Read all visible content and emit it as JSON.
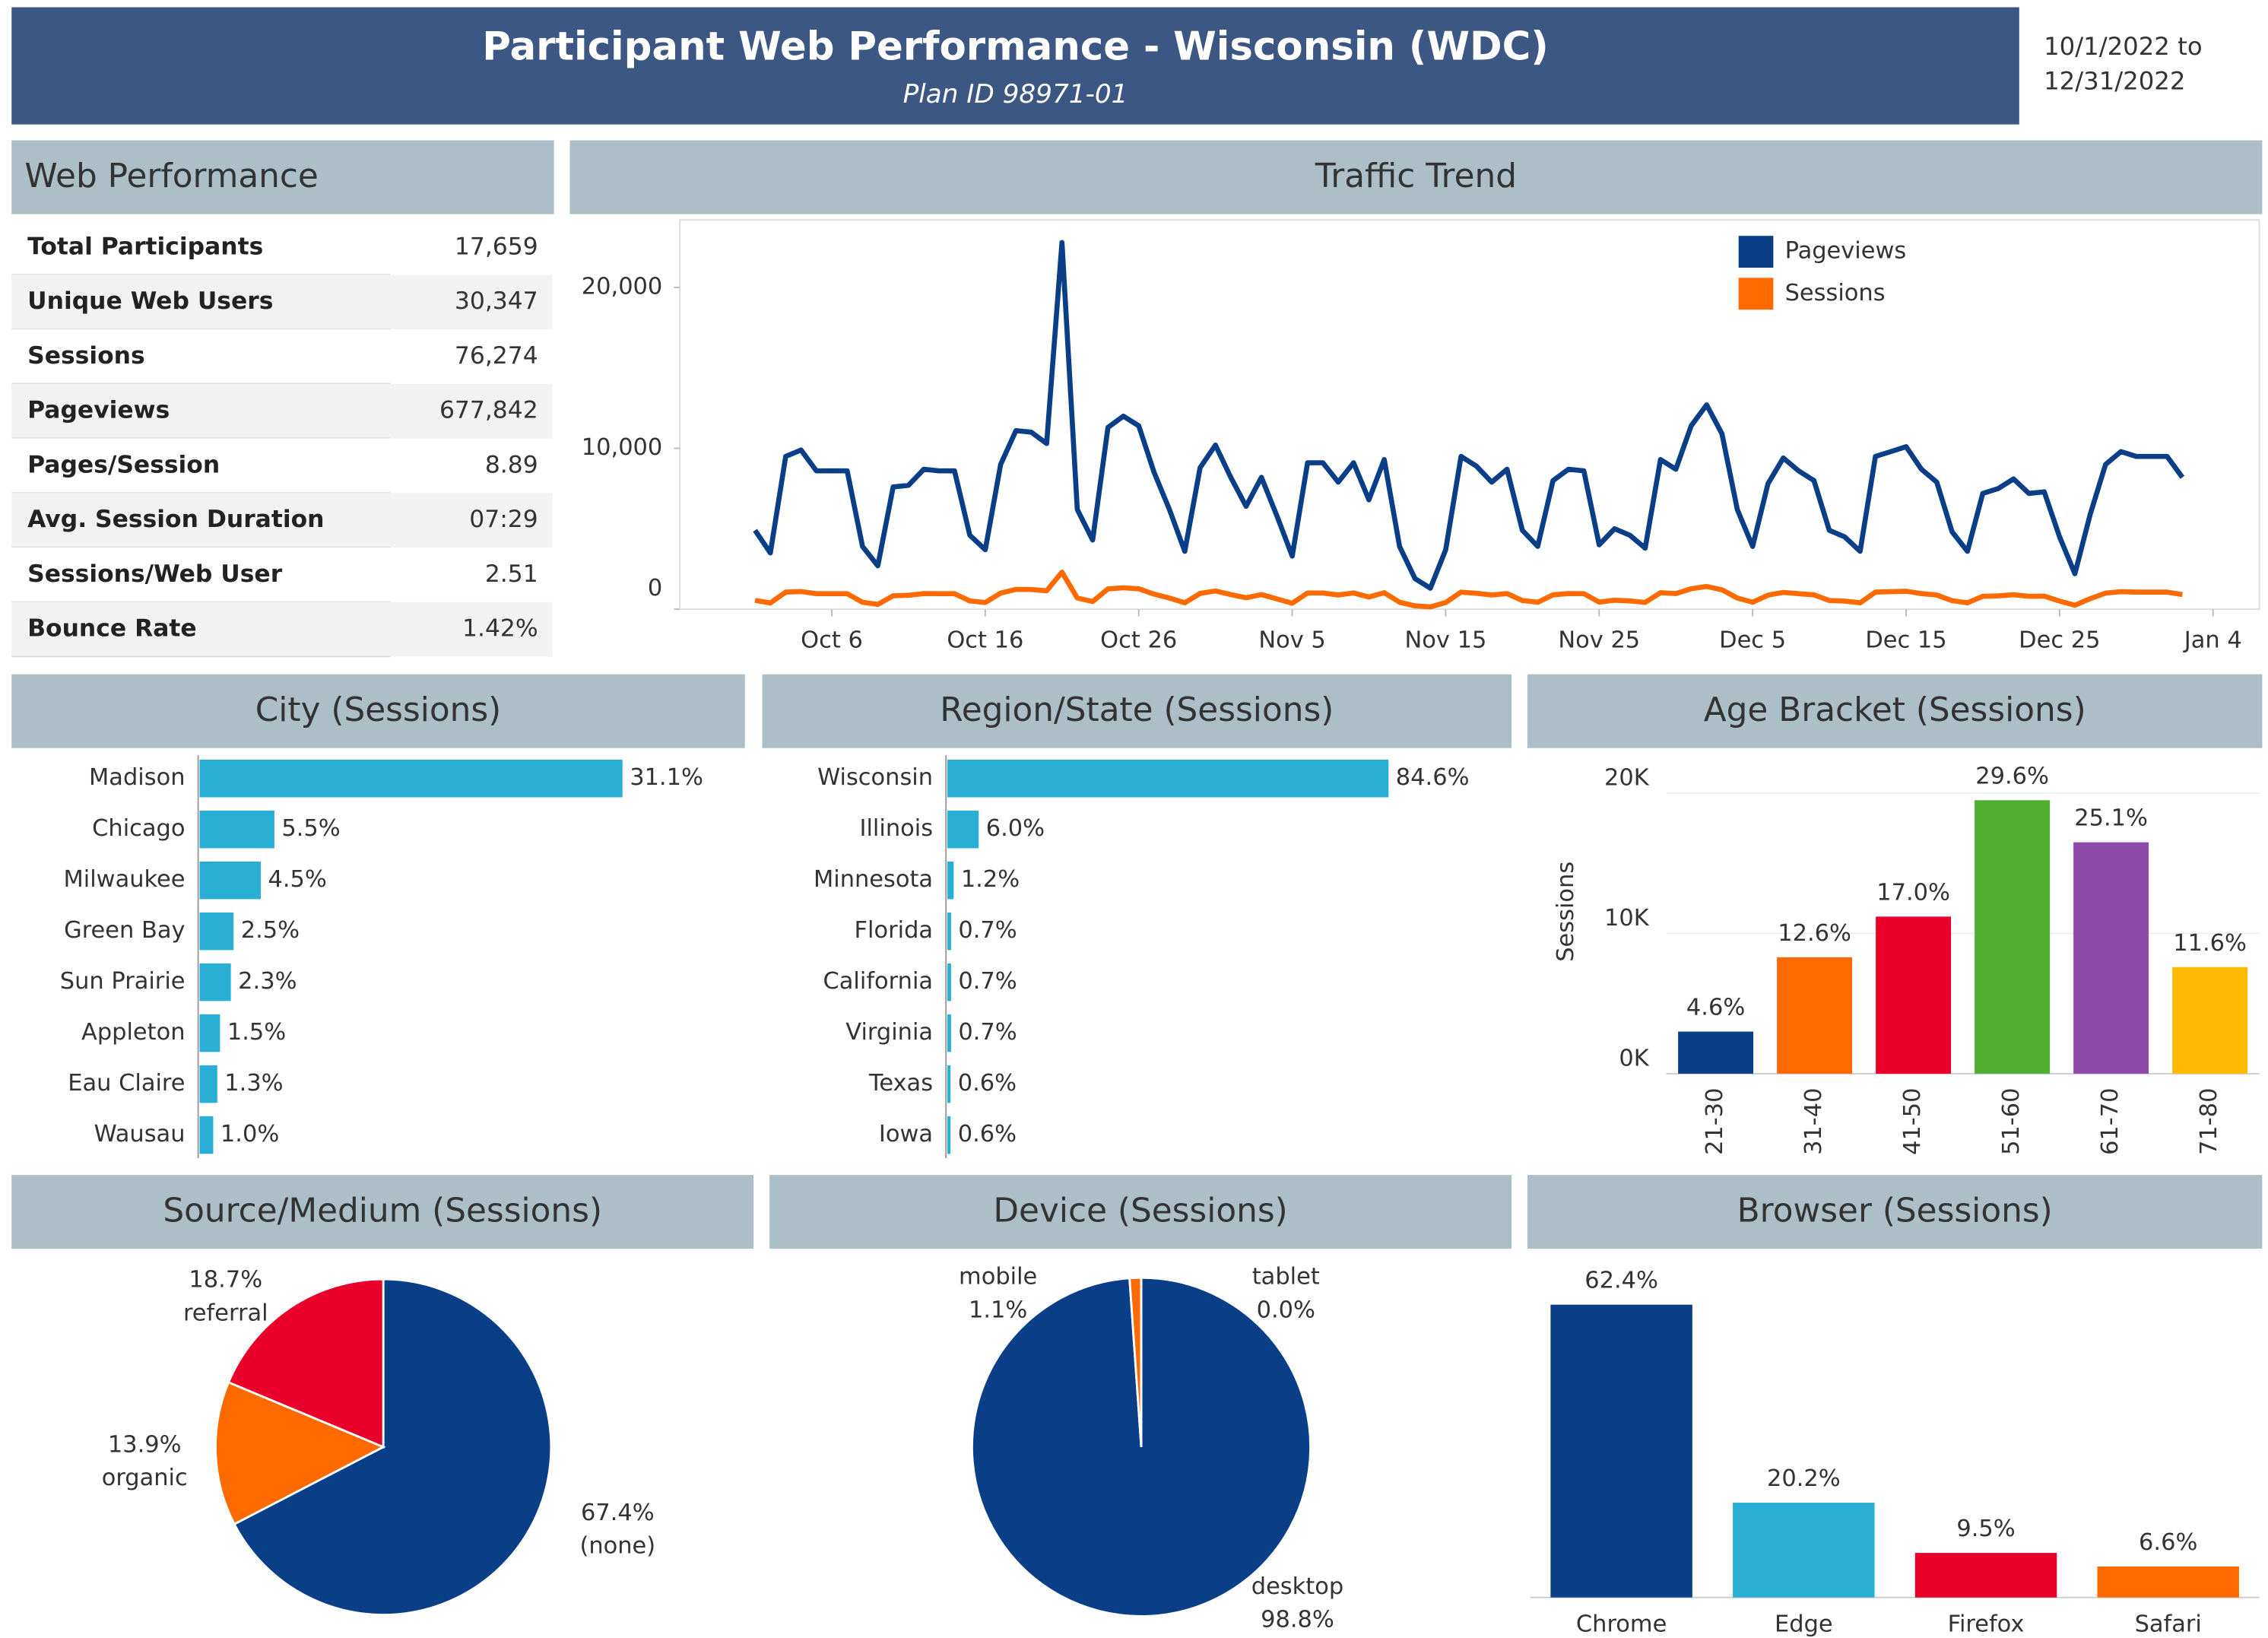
{
  "header": {
    "title": "Participant Web Performance - Wisconsin (WDC)",
    "subtitle": "Plan ID 98971-01",
    "date_range": [
      "10/1/2022 to",
      "12/31/2022"
    ]
  },
  "web_performance": {
    "title": "Web Performance",
    "rows": [
      [
        "Total Participants",
        "17,659"
      ],
      [
        "Unique Web Users",
        "30,347"
      ],
      [
        "Sessions",
        "76,274"
      ],
      [
        "Pageviews",
        "677,842"
      ],
      [
        "Pages/Session",
        "8.89"
      ],
      [
        "Avg. Session Duration",
        "07:29"
      ],
      [
        "Sessions/Web User",
        "2.51"
      ],
      [
        "Bounce Rate",
        "1.42%"
      ]
    ]
  },
  "chart_data": [
    {
      "type": "line",
      "title": "Traffic Trend",
      "x": [
        "Oct 1",
        "Oct 2",
        "Oct 3",
        "Oct 4",
        "Oct 5",
        "Oct 6",
        "Oct 7",
        "Oct 8",
        "Oct 9",
        "Oct 10",
        "Oct 11",
        "Oct 12",
        "Oct 13",
        "Oct 14",
        "Oct 15",
        "Oct 16",
        "Oct 17",
        "Oct 18",
        "Oct 19",
        "Oct 20",
        "Oct 21",
        "Oct 22",
        "Oct 23",
        "Oct 24",
        "Oct 25",
        "Oct 26",
        "Oct 27",
        "Oct 28",
        "Oct 29",
        "Oct 30",
        "Oct 31",
        "Nov 1",
        "Nov 2",
        "Nov 3",
        "Nov 4",
        "Nov 5",
        "Nov 6",
        "Nov 7",
        "Nov 8",
        "Nov 9",
        "Nov 10",
        "Nov 11",
        "Nov 12",
        "Nov 13",
        "Nov 14",
        "Nov 15",
        "Nov 16",
        "Nov 17",
        "Nov 18",
        "Nov 19",
        "Nov 20",
        "Nov 21",
        "Nov 22",
        "Nov 23",
        "Nov 24",
        "Nov 25",
        "Nov 26",
        "Nov 27",
        "Nov 28",
        "Nov 29",
        "Nov 30",
        "Dec 1",
        "Dec 2",
        "Dec 3",
        "Dec 4",
        "Dec 5",
        "Dec 6",
        "Dec 7",
        "Dec 8",
        "Dec 9",
        "Dec 10",
        "Dec 11",
        "Dec 12",
        "Dec 13",
        "Dec 14",
        "Dec 15",
        "Dec 16",
        "Dec 17",
        "Dec 18",
        "Dec 19",
        "Dec 20",
        "Dec 21",
        "Dec 22",
        "Dec 23",
        "Dec 24",
        "Dec 25",
        "Dec 26",
        "Dec 27",
        "Dec 28",
        "Dec 29",
        "Dec 30",
        "Dec 31",
        "Jan 1",
        "Jan 2"
      ],
      "series": [
        {
          "name": "Pageviews",
          "color": "#0a3f87",
          "values": [
            4900,
            3500,
            9500,
            9900,
            8600,
            8600,
            8600,
            3900,
            2700,
            7600,
            7700,
            8700,
            8600,
            8600,
            4600,
            3700,
            9000,
            11100,
            11000,
            10300,
            22800,
            6200,
            4300,
            11300,
            12000,
            11400,
            8500,
            6200,
            3600,
            8800,
            10200,
            8200,
            6400,
            8200,
            5800,
            3300,
            9100,
            9100,
            7900,
            9100,
            6800,
            9300,
            3900,
            1900,
            1300,
            3700,
            9500,
            8900,
            7900,
            8700,
            4900,
            3900,
            8000,
            8700,
            8600,
            4000,
            5000,
            4600,
            3800,
            9300,
            8700,
            11400,
            12700,
            10900,
            6200,
            3900,
            7800,
            9400,
            8600,
            8000,
            4900,
            4500,
            3600,
            9500,
            9800,
            10100,
            8700,
            7900,
            4800,
            3600,
            7200,
            7500,
            8100,
            7200,
            7300,
            4500,
            2200,
            5900,
            9000,
            9800,
            9500,
            9500,
            9500,
            8200
          ]
        },
        {
          "name": "Sessions",
          "color": "#ff6a00",
          "values": [
            550,
            390,
            1060,
            1100,
            960,
            960,
            960,
            430,
            300,
            840,
            860,
            970,
            960,
            960,
            510,
            410,
            1000,
            1230,
            1220,
            1140,
            2300,
            690,
            480,
            1260,
            1330,
            1270,
            940,
            690,
            400,
            980,
            1130,
            910,
            710,
            910,
            640,
            370,
            1010,
            1010,
            880,
            1010,
            760,
            1030,
            430,
            210,
            140,
            410,
            1060,
            990,
            880,
            970,
            540,
            430,
            890,
            970,
            960,
            440,
            560,
            510,
            420,
            1030,
            970,
            1270,
            1410,
            1210,
            690,
            430,
            870,
            1040,
            960,
            890,
            540,
            500,
            400,
            1060,
            1090,
            1120,
            970,
            880,
            530,
            400,
            800,
            830,
            900,
            800,
            810,
            500,
            240,
            660,
            1000,
            1090,
            1060,
            1060,
            1060,
            910
          ]
        }
      ],
      "ylim": [
        0,
        24200
      ],
      "yticks": [
        0,
        {
          "value": 10000,
          "label": "10,000"
        },
        {
          "value": 20000,
          "label": "20,000"
        }
      ],
      "xticks": [
        "Oct 6",
        "Oct 16",
        "Oct 26",
        "Nov 5",
        "Nov 15",
        "Nov 25",
        "Dec 5",
        "Dec 15",
        "Dec 25",
        "Jan 4"
      ],
      "legend": "top-right"
    },
    {
      "type": "bar",
      "orientation": "horizontal",
      "title": "City (Sessions)",
      "categories": [
        "Madison",
        "Chicago",
        "Milwaukee",
        "Green Bay",
        "Sun Prairie",
        "Appleton",
        "Eau Claire",
        "Wausau"
      ],
      "values": [
        31.1,
        5.5,
        4.5,
        2.5,
        2.3,
        1.5,
        1.3,
        1.0
      ],
      "value_labels": [
        "31.1%",
        "5.5%",
        "4.5%",
        "2.5%",
        "2.3%",
        "1.5%",
        "1.3%",
        "1.0%"
      ],
      "color": "#29afd5",
      "xlim": [
        0,
        40
      ]
    },
    {
      "type": "bar",
      "orientation": "horizontal",
      "title": "Region/State (Sessions)",
      "categories": [
        "Wisconsin",
        "Illinois",
        "Minnesota",
        "Florida",
        "California",
        "Virginia",
        "Texas",
        "Iowa"
      ],
      "values": [
        84.6,
        6.0,
        1.2,
        0.7,
        0.7,
        0.7,
        0.6,
        0.6
      ],
      "value_labels": [
        "84.6%",
        "6.0%",
        "1.2%",
        "0.7%",
        "0.7%",
        "0.7%",
        "0.6%",
        "0.6%"
      ],
      "color": "#29afd5",
      "xlim": [
        0,
        100
      ]
    },
    {
      "type": "bar",
      "orientation": "vertical",
      "title": "Age Bracket (Sessions)",
      "y_label": "Sessions",
      "categories": [
        "21-30",
        "31-40",
        "41-50",
        "51-60",
        "61-70",
        "71-80"
      ],
      "values": [
        3000,
        8300,
        11200,
        19500,
        16500,
        7600
      ],
      "percent_labels": [
        "4.6%",
        "12.6%",
        "17.0%",
        "29.6%",
        "25.1%",
        "11.6%"
      ],
      "colors": [
        "#0a3f87",
        "#ff6a00",
        "#e8002b",
        "#4fae30",
        "#8e4aa8",
        "#ffba00"
      ],
      "ylim": [
        0,
        22700
      ],
      "yticks": [
        {
          "value": 0,
          "label": "0K"
        },
        {
          "value": 10000,
          "label": "10K"
        },
        {
          "value": 20000,
          "label": "20K"
        }
      ],
      "grid": true
    },
    {
      "type": "pie",
      "title": "Source/Medium (Sessions)",
      "categories": [
        "(none)",
        "organic",
        "referral"
      ],
      "values": [
        67.4,
        13.9,
        18.7
      ],
      "value_labels": [
        "67.4%",
        "13.9%",
        "18.7%"
      ],
      "colors": [
        "#0a3f87",
        "#ff6a00",
        "#e8002b"
      ]
    },
    {
      "type": "pie",
      "title": "Device (Sessions)",
      "categories": [
        "desktop",
        "mobile",
        "tablet"
      ],
      "values": [
        98.8,
        1.1,
        0
      ],
      "value_labels": [
        "98.8%",
        "1.1%",
        "0.0%"
      ],
      "colors": [
        "#0a3f87",
        "#ff6a00",
        "#29afd5"
      ]
    },
    {
      "type": "bar",
      "orientation": "vertical",
      "title": "Browser (Sessions)",
      "categories": [
        "Chrome",
        "Edge",
        "Firefox",
        "Safari"
      ],
      "values": [
        62.4,
        20.2,
        9.5,
        6.6
      ],
      "value_labels": [
        "62.4%",
        "20.2%",
        "9.5%",
        "6.6%"
      ],
      "colors": [
        "#0a3f87",
        "#29afd5",
        "#e8002b",
        "#ff6a00"
      ],
      "ylim": [
        0,
        70
      ]
    }
  ]
}
